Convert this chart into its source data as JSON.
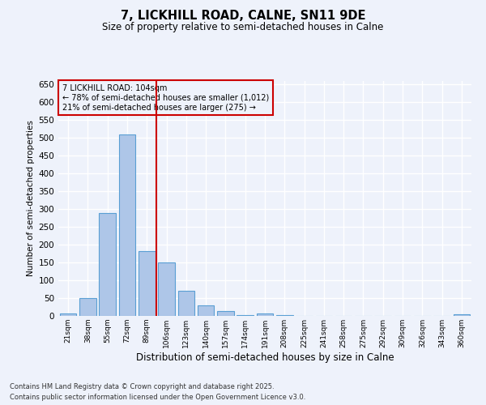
{
  "title1": "7, LICKHILL ROAD, CALNE, SN11 9DE",
  "title2": "Size of property relative to semi-detached houses in Calne",
  "xlabel": "Distribution of semi-detached houses by size in Calne",
  "ylabel": "Number of semi-detached properties",
  "categories": [
    "21sqm",
    "38sqm",
    "55sqm",
    "72sqm",
    "89sqm",
    "106sqm",
    "123sqm",
    "140sqm",
    "157sqm",
    "174sqm",
    "191sqm",
    "208sqm",
    "225sqm",
    "241sqm",
    "258sqm",
    "275sqm",
    "292sqm",
    "309sqm",
    "326sqm",
    "343sqm",
    "360sqm"
  ],
  "values": [
    7,
    50,
    290,
    510,
    183,
    151,
    70,
    30,
    14,
    3,
    7,
    2,
    0,
    0,
    0,
    0,
    0,
    0,
    0,
    0,
    5
  ],
  "bar_color": "#aec6e8",
  "bar_edge_color": "#5a9fd4",
  "vline_color": "#cc0000",
  "annotation_title": "7 LICKHILL ROAD: 104sqm",
  "annotation_line1": "← 78% of semi-detached houses are smaller (1,012)",
  "annotation_line2": "21% of semi-detached houses are larger (275) →",
  "annotation_box_color": "#cc0000",
  "ylim": [
    0,
    660
  ],
  "yticks": [
    0,
    50,
    100,
    150,
    200,
    250,
    300,
    350,
    400,
    450,
    500,
    550,
    600,
    650
  ],
  "background_color": "#eef2fb",
  "grid_color": "#ffffff",
  "footer1": "Contains HM Land Registry data © Crown copyright and database right 2025.",
  "footer2": "Contains public sector information licensed under the Open Government Licence v3.0."
}
